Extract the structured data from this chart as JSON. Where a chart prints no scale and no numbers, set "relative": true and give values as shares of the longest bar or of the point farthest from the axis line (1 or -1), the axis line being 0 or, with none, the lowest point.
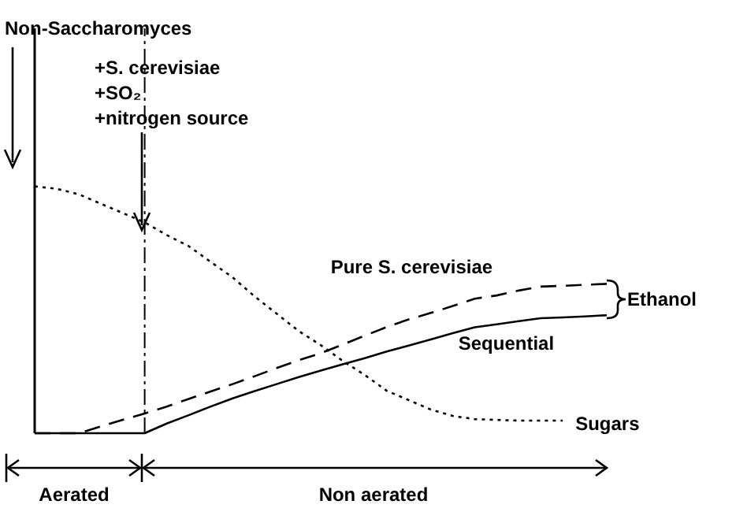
{
  "chart_data": {
    "type": "line",
    "relative": true,
    "grid": false,
    "legend": "right",
    "marker": "none",
    "categories": [
      null,
      null,
      null,
      null,
      null,
      null,
      null,
      null,
      null,
      null,
      null,
      null,
      null,
      null,
      null,
      null,
      null,
      null,
      null,
      null,
      null,
      null,
      null,
      null,
      null,
      null,
      null
    ],
    "series": [
      {
        "name": "Sugars",
        "color": "#000000",
        "line_style": "dotted",
        "values": [
          1,
          0.99,
          0.968,
          0.93,
          0.892,
          0.854,
          0.803,
          0.758,
          0.694,
          0.631,
          0.554,
          0.484,
          0.414,
          0.357,
          0.293,
          0.236,
          0.172,
          0.134,
          0.096,
          0.07,
          0.057,
          0.054,
          0.051,
          0.051,
          0.051,
          null,
          null
        ]
      },
      {
        "name": "Pure S. cerevisiae",
        "color": "#000000",
        "line_style": "dashed",
        "values": [
          0,
          0,
          0,
          0.027,
          0.054,
          0.08,
          0.108,
          0.139,
          0.169,
          0.199,
          0.231,
          0.264,
          0.296,
          0.324,
          0.359,
          0.395,
          0.43,
          0.461,
          0.487,
          0.515,
          0.545,
          0.558,
          0.578,
          0.594,
          0.597,
          0.601,
          0.605
        ]
      },
      {
        "name": "Sequential",
        "color": "#000000",
        "line_style": "solid",
        "values": [
          0,
          0,
          0,
          0,
          0,
          0,
          0.039,
          0.073,
          0.108,
          0.141,
          0.171,
          0.199,
          0.227,
          0.254,
          0.279,
          0.304,
          0.331,
          0.355,
          0.38,
          0.405,
          0.429,
          0.441,
          0.454,
          0.466,
          0.469,
          0.473,
          0.478
        ]
      }
    ],
    "annotations": [
      "Non-Saccharomyces",
      "+S. cerevisiae",
      "+SO₂",
      "+nitrogen source",
      "Ethanol",
      "Aerated",
      "Non aerated"
    ]
  }
}
